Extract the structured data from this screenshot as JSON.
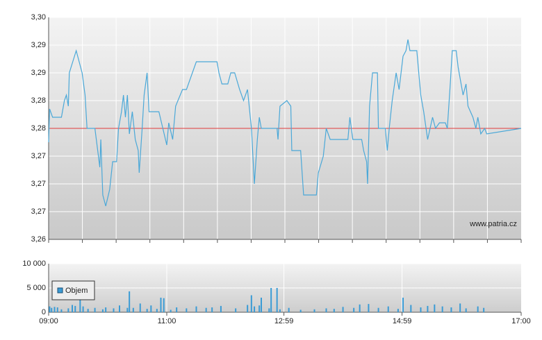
{
  "chart_data": [
    {
      "type": "line",
      "xlim": [
        0,
        480
      ],
      "ylim": [
        3.26,
        3.3
      ],
      "yticks": [
        {
          "value": 3.26,
          "label": "3,26"
        },
        {
          "value": 3.265,
          "label": "3,27"
        },
        {
          "value": 3.27,
          "label": "3,27"
        },
        {
          "value": 3.275,
          "label": "3,27"
        },
        {
          "value": 3.28,
          "label": "3,28"
        },
        {
          "value": 3.285,
          "label": "3,28"
        },
        {
          "value": 3.29,
          "label": "3,29"
        },
        {
          "value": 3.295,
          "label": "3,29"
        },
        {
          "value": 3.3,
          "label": "3,30"
        }
      ],
      "grid": true,
      "color": "#4aa8d8",
      "reference_line": {
        "value": 3.28,
        "color": "#e03a3a"
      },
      "watermark": "www.patria.cz",
      "x": [
        0,
        1,
        4,
        13,
        16,
        18,
        20,
        21,
        28,
        34,
        37,
        39,
        47,
        52,
        53,
        55,
        58,
        62,
        65,
        69,
        71,
        74,
        76,
        78,
        80,
        82,
        85,
        88,
        91,
        92,
        95,
        97,
        100,
        102,
        112,
        116,
        120,
        122,
        126,
        129,
        136,
        140,
        150,
        171,
        173,
        176,
        182,
        185,
        189,
        194,
        198,
        202,
        206,
        209,
        212,
        214,
        216,
        232,
        233,
        235,
        242,
        246,
        247,
        256,
        259,
        272,
        274,
        279,
        282,
        286,
        304,
        306,
        309,
        318,
        320,
        323,
        324,
        326,
        329,
        334,
        335,
        342,
        344,
        346,
        349,
        353,
        356,
        360,
        363,
        365,
        367,
        374,
        378,
        381,
        385,
        390,
        393,
        397,
        403,
        405,
        408,
        410,
        414,
        416,
        419,
        421,
        424,
        426,
        431,
        434,
        436,
        439,
        443,
        445,
        480
      ],
      "values": [
        3.2775,
        3.2835,
        3.282,
        3.282,
        3.285,
        3.286,
        3.284,
        3.29,
        3.294,
        3.29,
        3.286,
        3.28,
        3.28,
        3.273,
        3.278,
        3.268,
        3.266,
        3.269,
        3.274,
        3.274,
        3.28,
        3.283,
        3.286,
        3.282,
        3.286,
        3.279,
        3.283,
        3.278,
        3.276,
        3.272,
        3.28,
        3.286,
        3.29,
        3.283,
        3.283,
        3.28,
        3.277,
        3.281,
        3.278,
        3.284,
        3.287,
        3.287,
        3.292,
        3.292,
        3.29,
        3.288,
        3.288,
        3.29,
        3.29,
        3.287,
        3.285,
        3.287,
        3.28,
        3.27,
        3.278,
        3.282,
        3.28,
        3.28,
        3.278,
        3.284,
        3.285,
        3.284,
        3.276,
        3.276,
        3.268,
        3.268,
        3.272,
        3.275,
        3.28,
        3.278,
        3.278,
        3.282,
        3.278,
        3.278,
        3.276,
        3.274,
        3.27,
        3.284,
        3.29,
        3.29,
        3.28,
        3.28,
        3.276,
        3.28,
        3.285,
        3.29,
        3.287,
        3.293,
        3.294,
        3.296,
        3.294,
        3.294,
        3.286,
        3.283,
        3.278,
        3.282,
        3.28,
        3.281,
        3.281,
        3.28,
        3.288,
        3.294,
        3.294,
        3.291,
        3.288,
        3.286,
        3.288,
        3.284,
        3.282,
        3.28,
        3.282,
        3.279,
        3.28,
        3.279,
        3.28
      ]
    },
    {
      "type": "bar",
      "xlim": [
        0,
        480
      ],
      "ylim": [
        0,
        10000
      ],
      "yticks": [
        0,
        {
          "value": 5000,
          "label": "5 000"
        },
        {
          "value": 10000,
          "label": "10 000"
        }
      ],
      "xticks": [
        {
          "value": 0,
          "label": "09:00"
        },
        {
          "value": 120,
          "label": "11:00"
        },
        {
          "value": 239,
          "label": "12:59"
        },
        {
          "value": 359,
          "label": "14:59"
        },
        {
          "value": 480,
          "label": "17:00"
        }
      ],
      "grid": true,
      "legend": "upper-left",
      "x": [
        1,
        3,
        6,
        9,
        13,
        20,
        24,
        27,
        32,
        35,
        40,
        47,
        55,
        58,
        66,
        72,
        80,
        82,
        86,
        93,
        100,
        104,
        110,
        114,
        117,
        124,
        130,
        140,
        150,
        160,
        166,
        175,
        190,
        202,
        206,
        209,
        214,
        216,
        224,
        226,
        232,
        235,
        244,
        256,
        270,
        282,
        290,
        299,
        310,
        316,
        325,
        335,
        345,
        355,
        360,
        368,
        378,
        385,
        392,
        400,
        409,
        418,
        424,
        436,
        442
      ],
      "series": [
        {
          "name": "Objem",
          "color": "#3a9bd5",
          "values": [
            1200,
            900,
            1100,
            1000,
            600,
            800,
            1500,
            1300,
            5800,
            1200,
            700,
            900,
            600,
            1000,
            800,
            1400,
            900,
            4300,
            900,
            1800,
            700,
            1400,
            700,
            3000,
            2900,
            500,
            1000,
            800,
            1200,
            900,
            1000,
            1300,
            800,
            1500,
            3500,
            1200,
            1400,
            3000,
            800,
            5000,
            5000,
            600,
            900,
            500,
            600,
            800,
            700,
            1100,
            900,
            1600,
            1700,
            900,
            1200,
            700,
            3000,
            1500,
            1000,
            1300,
            1600,
            1200,
            1000,
            1800,
            800,
            1200,
            900
          ]
        }
      ]
    }
  ]
}
